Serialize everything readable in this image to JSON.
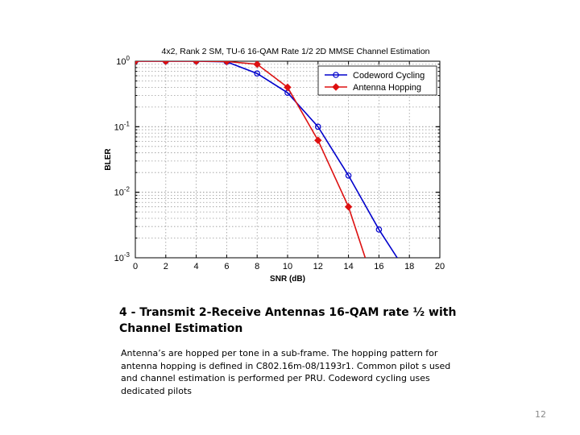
{
  "chart_data": {
    "type": "line",
    "title": "4x2, Rank 2 SM, TU-6 16-QAM Rate 1/2 2D MMSE Channel Estimation",
    "xlabel": "SNR (dB)",
    "ylabel": "BLER",
    "xlim": [
      0,
      20
    ],
    "ylim": [
      0.001,
      1
    ],
    "yscale": "log",
    "xticks": [
      "0",
      "2",
      "4",
      "6",
      "8",
      "10",
      "12",
      "14",
      "16",
      "18",
      "20"
    ],
    "yticks": [
      {
        "value": 1,
        "base": "10",
        "exp": "0"
      },
      {
        "value": 0.1,
        "base": "10",
        "exp": "-1"
      },
      {
        "value": 0.01,
        "base": "10",
        "exp": "-2"
      },
      {
        "value": 0.001,
        "base": "10",
        "exp": "-3"
      }
    ],
    "grid": true,
    "legend_position": "top-right",
    "series": [
      {
        "name": "Codeword Cycling",
        "color": "#0000cc",
        "marker": "circle",
        "x": [
          0,
          2,
          4,
          6,
          8,
          10,
          12,
          14,
          16,
          17.2
        ],
        "y": [
          1.0,
          1.0,
          1.0,
          0.98,
          0.65,
          0.33,
          0.1,
          0.018,
          0.0027,
          0.001
        ]
      },
      {
        "name": "Antenna Hopping",
        "color": "#dd1111",
        "marker": "diamond",
        "x": [
          0,
          2,
          4,
          6,
          8,
          10,
          12,
          14,
          15.1
        ],
        "y": [
          1.0,
          1.0,
          1.0,
          0.99,
          0.9,
          0.4,
          0.062,
          0.006,
          0.001
        ]
      }
    ]
  },
  "slide": {
    "heading": "4 - Transmit 2-Receive Antennas 16-QAM rate ½ with Channel Estimation",
    "body": "Antenna’s are hopped per tone in a sub-frame. The hopping pattern for antenna hopping is defined in C802.16m-08/1193r1. Common pilot s used and channel estimation is performed per PRU. Codeword cycling uses dedicated pilots",
    "page_number": "12"
  }
}
